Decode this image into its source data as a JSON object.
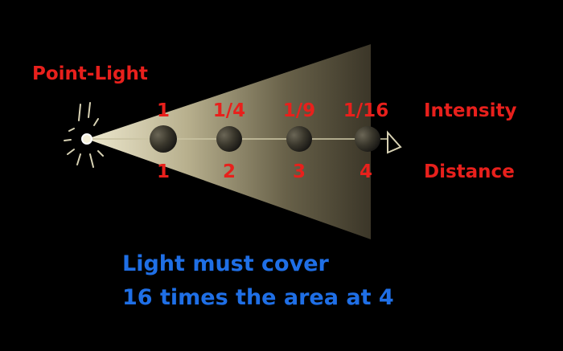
{
  "title": "Point-Light",
  "row_labels": {
    "intensity": "Intensity",
    "distance": "Distance"
  },
  "markers": [
    {
      "intensity": "1",
      "distance": "1"
    },
    {
      "intensity": "1/4",
      "distance": "2"
    },
    {
      "intensity": "1/9",
      "distance": "3"
    },
    {
      "intensity": "1/16",
      "distance": "4"
    }
  ],
  "caption": {
    "line1": "Light must cover",
    "line2": "16 times the area at 4"
  },
  "colors": {
    "label": "#e8201c",
    "caption": "#1f6fe6",
    "beam": "#e8e0b8",
    "background": "#000000"
  }
}
